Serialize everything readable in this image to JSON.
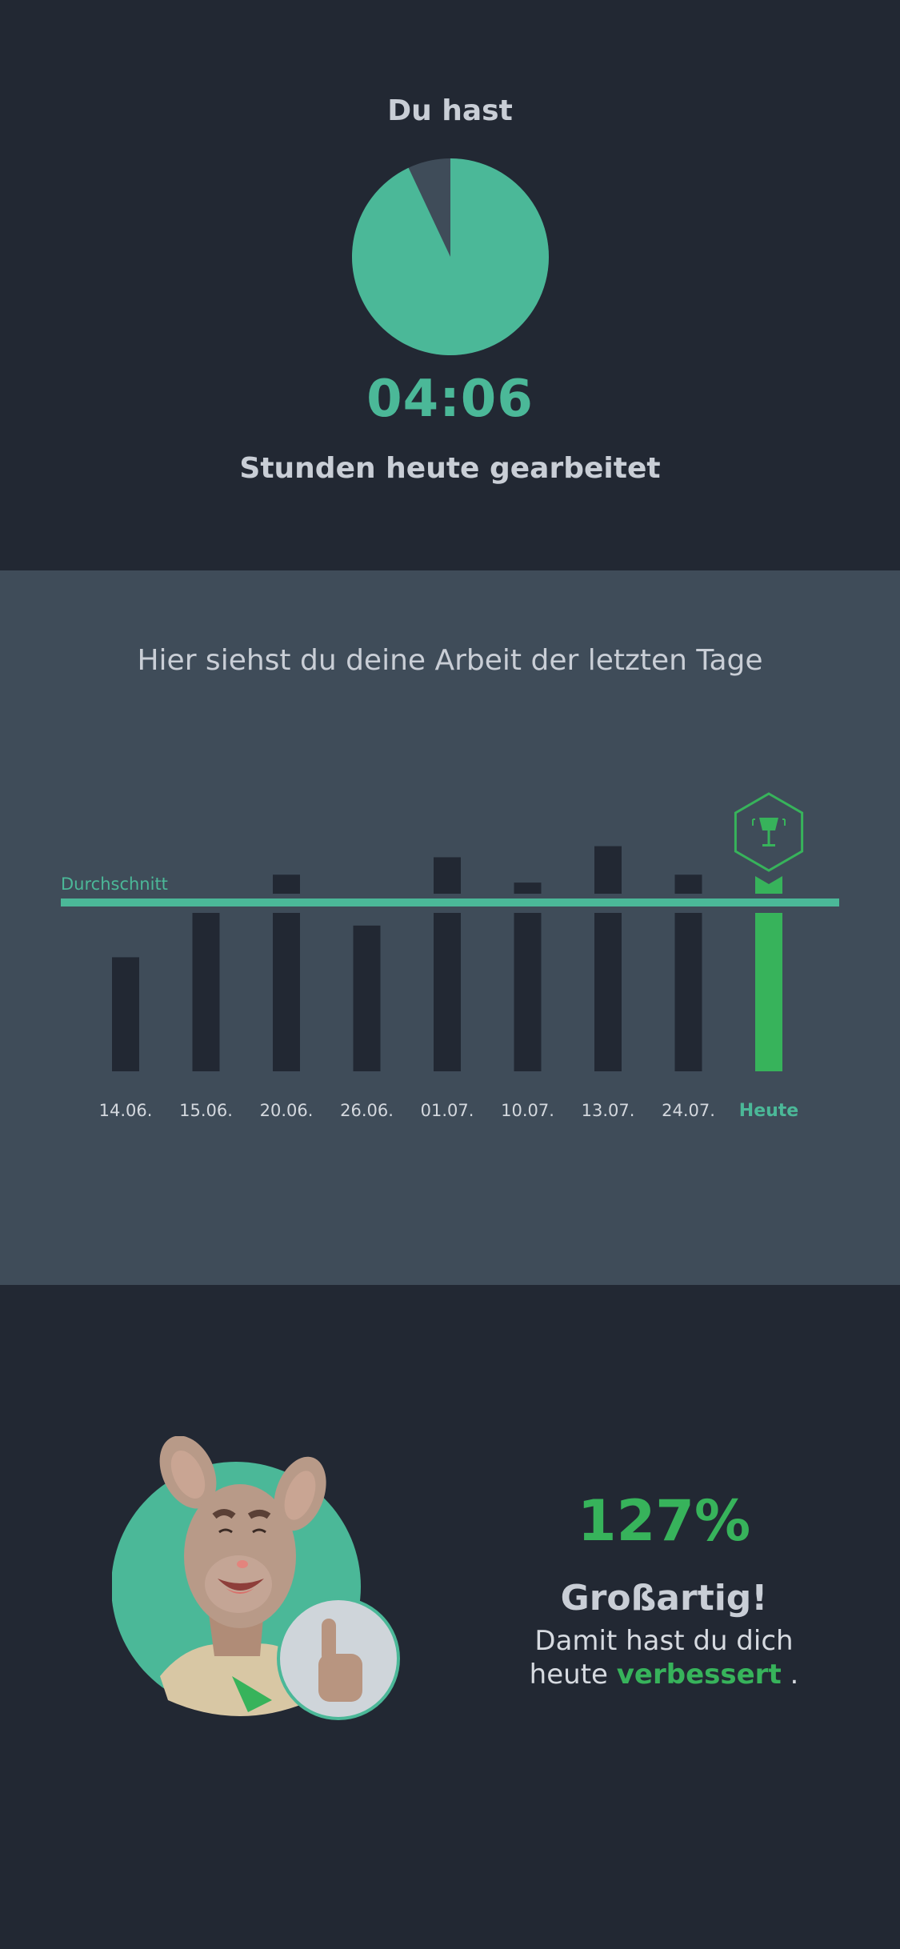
{
  "summary": {
    "heading": "Du hast",
    "time": "04:06",
    "caption": "Stunden heute gearbeitet",
    "pie_fraction": 0.93,
    "colors": {
      "accent": "#4bb898",
      "remainder": "#3f4c59"
    }
  },
  "history": {
    "title": "Hier siehst du deine Arbeit der letzten Tage",
    "chart_data": {
      "type": "bar",
      "categories": [
        "14.06.",
        "15.06.",
        "20.06.",
        "26.06.",
        "01.07.",
        "10.07.",
        "13.07.",
        "24.07.",
        "Heute"
      ],
      "values": [
        0.72,
        1.0,
        1.12,
        0.92,
        1.23,
        1.07,
        1.3,
        1.12,
        1.12
      ],
      "average": 1.0,
      "average_label": "Durchschnitt",
      "highlight_category": "Heute",
      "colors": {
        "bar": "#222833",
        "highlight": "#37b35b",
        "average": "#4bb898",
        "badge": "#37b35b"
      }
    }
  },
  "result": {
    "percent": "127%",
    "headline": "Großartig!",
    "line1": "Damit hast du dich",
    "line2_pre": "heute ",
    "line2_highlight": "verbessert",
    "line2_post": " ."
  },
  "icons": {
    "badge": "trophy-icon",
    "thumbs": "thumbs-up-icon",
    "mascot": "kangaroo-mascot"
  }
}
